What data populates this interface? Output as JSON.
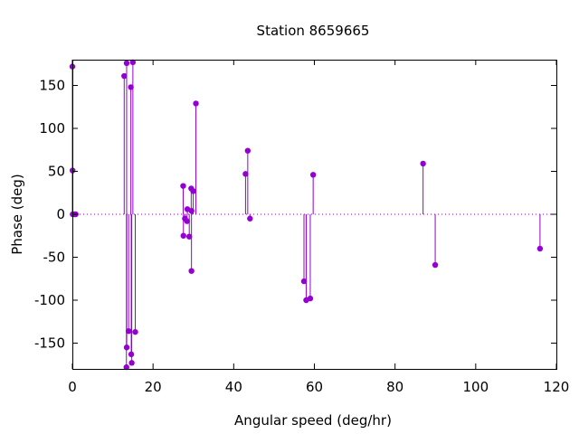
{
  "chart_data": {
    "type": "scatter",
    "style": "impulses-with-points",
    "title": "Station 8659665",
    "xlabel": "Angular speed (deg/hr)",
    "ylabel": "Phase (deg)",
    "xlim": [
      0,
      120
    ],
    "ylim": [
      -180,
      180
    ],
    "xticks": [
      0,
      20,
      40,
      60,
      80,
      100,
      120
    ],
    "yticks": [
      -150,
      -100,
      -50,
      0,
      50,
      100,
      150
    ],
    "grid": false,
    "zero_line": "dotted",
    "color": "#9400d3",
    "points": [
      {
        "x": 0.0,
        "y": 172
      },
      {
        "x": 0.04,
        "y": 51
      },
      {
        "x": 0.08,
        "y": 0
      },
      {
        "x": 0.54,
        "y": 0
      },
      {
        "x": 0.82,
        "y": 0
      },
      {
        "x": 12.85,
        "y": 161
      },
      {
        "x": 13.4,
        "y": -178
      },
      {
        "x": 13.45,
        "y": 176
      },
      {
        "x": 13.47,
        "y": -155
      },
      {
        "x": 13.94,
        "y": -136
      },
      {
        "x": 14.5,
        "y": 148
      },
      {
        "x": 14.6,
        "y": -163
      },
      {
        "x": 14.72,
        "y": -173
      },
      {
        "x": 15.0,
        "y": 177
      },
      {
        "x": 15.59,
        "y": -137
      },
      {
        "x": 27.47,
        "y": 33
      },
      {
        "x": 27.53,
        "y": -25
      },
      {
        "x": 27.9,
        "y": -5
      },
      {
        "x": 28.43,
        "y": -8
      },
      {
        "x": 28.51,
        "y": 6
      },
      {
        "x": 28.98,
        "y": -26
      },
      {
        "x": 29.46,
        "y": 30
      },
      {
        "x": 29.53,
        "y": -66
      },
      {
        "x": 29.53,
        "y": 4
      },
      {
        "x": 29.96,
        "y": 27
      },
      {
        "x": 30.63,
        "y": 129
      },
      {
        "x": 42.93,
        "y": 47
      },
      {
        "x": 43.48,
        "y": 74
      },
      {
        "x": 44.03,
        "y": -5
      },
      {
        "x": 57.42,
        "y": -78
      },
      {
        "x": 57.97,
        "y": -100
      },
      {
        "x": 58.98,
        "y": -98
      },
      {
        "x": 59.7,
        "y": 46
      },
      {
        "x": 86.95,
        "y": 59
      },
      {
        "x": 89.96,
        "y": -59
      },
      {
        "x": 115.94,
        "y": -40
      }
    ]
  }
}
